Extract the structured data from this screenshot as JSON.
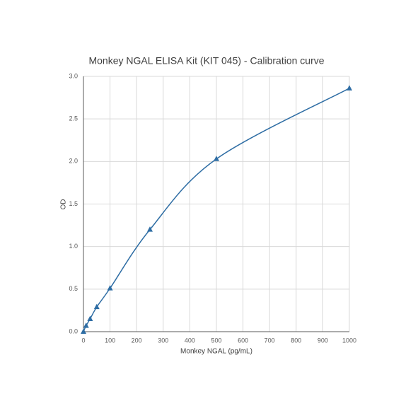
{
  "chart_data": {
    "type": "scatter",
    "title": "Monkey NGAL ELISA Kit (KIT 045) - Calibration curve",
    "x_label": "Monkey NGAL (pg/mL)",
    "y_label": "OD",
    "series": [
      {
        "name": "OD",
        "color": "#2e6da4",
        "x": [
          0,
          10,
          25,
          50,
          100,
          250,
          500,
          1000
        ],
        "values": [
          0.0,
          0.07,
          0.15,
          0.29,
          0.51,
          1.2,
          2.03,
          2.86
        ]
      }
    ],
    "xlim": [
      0,
      1000
    ],
    "xticks": [
      0,
      100,
      200,
      300,
      400,
      500,
      600,
      700,
      800,
      900,
      1000
    ],
    "ylim": [
      0,
      3
    ],
    "yticks": [
      {
        "value": 0,
        "label": "0.0"
      },
      0.5,
      {
        "value": 1,
        "label": "1.0"
      },
      1.5,
      {
        "value": 2,
        "label": "2.0"
      },
      2.5,
      {
        "value": 3,
        "label": "3.0"
      }
    ],
    "grid": true,
    "smooth": true
  }
}
